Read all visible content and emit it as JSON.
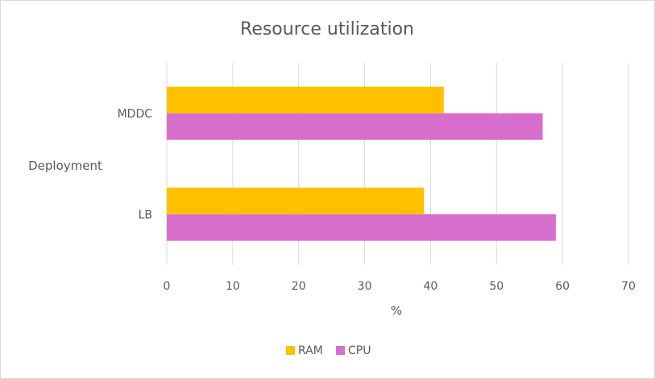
{
  "chart_data": {
    "type": "bar",
    "orientation": "horizontal",
    "title": "Resource utilization",
    "xlabel": "%",
    "ylabel": "Deployment",
    "categories": [
      "MDDC",
      "LB"
    ],
    "series": [
      {
        "name": "RAM",
        "values": [
          42,
          39
        ],
        "color": "#ffc000"
      },
      {
        "name": "CPU",
        "values": [
          57,
          59
        ],
        "color": "#d86ecc"
      }
    ],
    "xlim": [
      0,
      70
    ],
    "xticks": [
      0,
      10,
      20,
      30,
      40,
      50,
      60,
      70
    ],
    "grid": "vertical",
    "legend": "bottom"
  }
}
